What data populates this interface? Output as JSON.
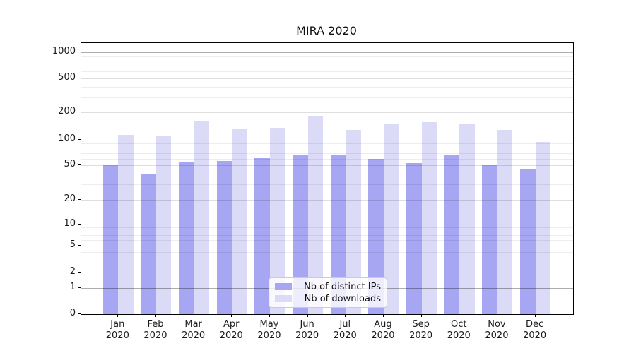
{
  "chart_data": {
    "type": "bar",
    "title": "MIRA 2020",
    "categories": [
      "Jan 2020",
      "Feb 2020",
      "Mar 2020",
      "Apr 2020",
      "May 2020",
      "Jun 2020",
      "Jul 2020",
      "Aug 2020",
      "Sep 2020",
      "Oct 2020",
      "Nov 2020",
      "Dec 2020"
    ],
    "x_tick_month": [
      "Jan",
      "Feb",
      "Mar",
      "Apr",
      "May",
      "Jun",
      "Jul",
      "Aug",
      "Sep",
      "Oct",
      "Nov",
      "Dec"
    ],
    "x_tick_year": "2020",
    "series": [
      {
        "name": "Nb of distinct IPs",
        "color": "#a6a6f2",
        "values": [
          50,
          39,
          54,
          56,
          61,
          67,
          67,
          60,
          53,
          67,
          50,
          45
        ]
      },
      {
        "name": "Nb of downloads",
        "color": "#dbdbf7",
        "values": [
          113,
          110,
          160,
          130,
          134,
          180,
          128,
          150,
          155,
          150,
          127,
          94
        ]
      }
    ],
    "xlabel": "",
    "ylabel": "",
    "yscale": "symlog",
    "ylim": [
      0,
      1280
    ],
    "yticks": [
      0,
      1,
      2,
      5,
      10,
      20,
      50,
      100,
      200,
      500,
      1000
    ],
    "minor_gridlines": [
      3,
      4,
      6,
      7,
      8,
      9,
      30,
      40,
      60,
      70,
      80,
      90,
      300,
      400,
      600,
      700,
      800,
      900
    ],
    "grid": "both",
    "legend_position": "lower center",
    "scale_anchors": [
      [
        0,
        1.0
      ],
      [
        1,
        0.9029
      ],
      [
        2,
        0.8464
      ],
      [
        5,
        0.7482
      ],
      [
        10,
        0.6684
      ],
      [
        20,
        0.5773
      ],
      [
        50,
        0.4513
      ],
      [
        100,
        0.356
      ],
      [
        200,
        0.256
      ],
      [
        500,
        0.1302
      ],
      [
        1000,
        0.0339
      ]
    ]
  },
  "palette": {
    "background": "#ffffff",
    "spine": "#000000",
    "text": "#1a1a1a",
    "grid_major": "#adadad",
    "grid_mid": "#dedede",
    "grid_minor": "#ebebeb",
    "legend_border": "#cccccc"
  }
}
